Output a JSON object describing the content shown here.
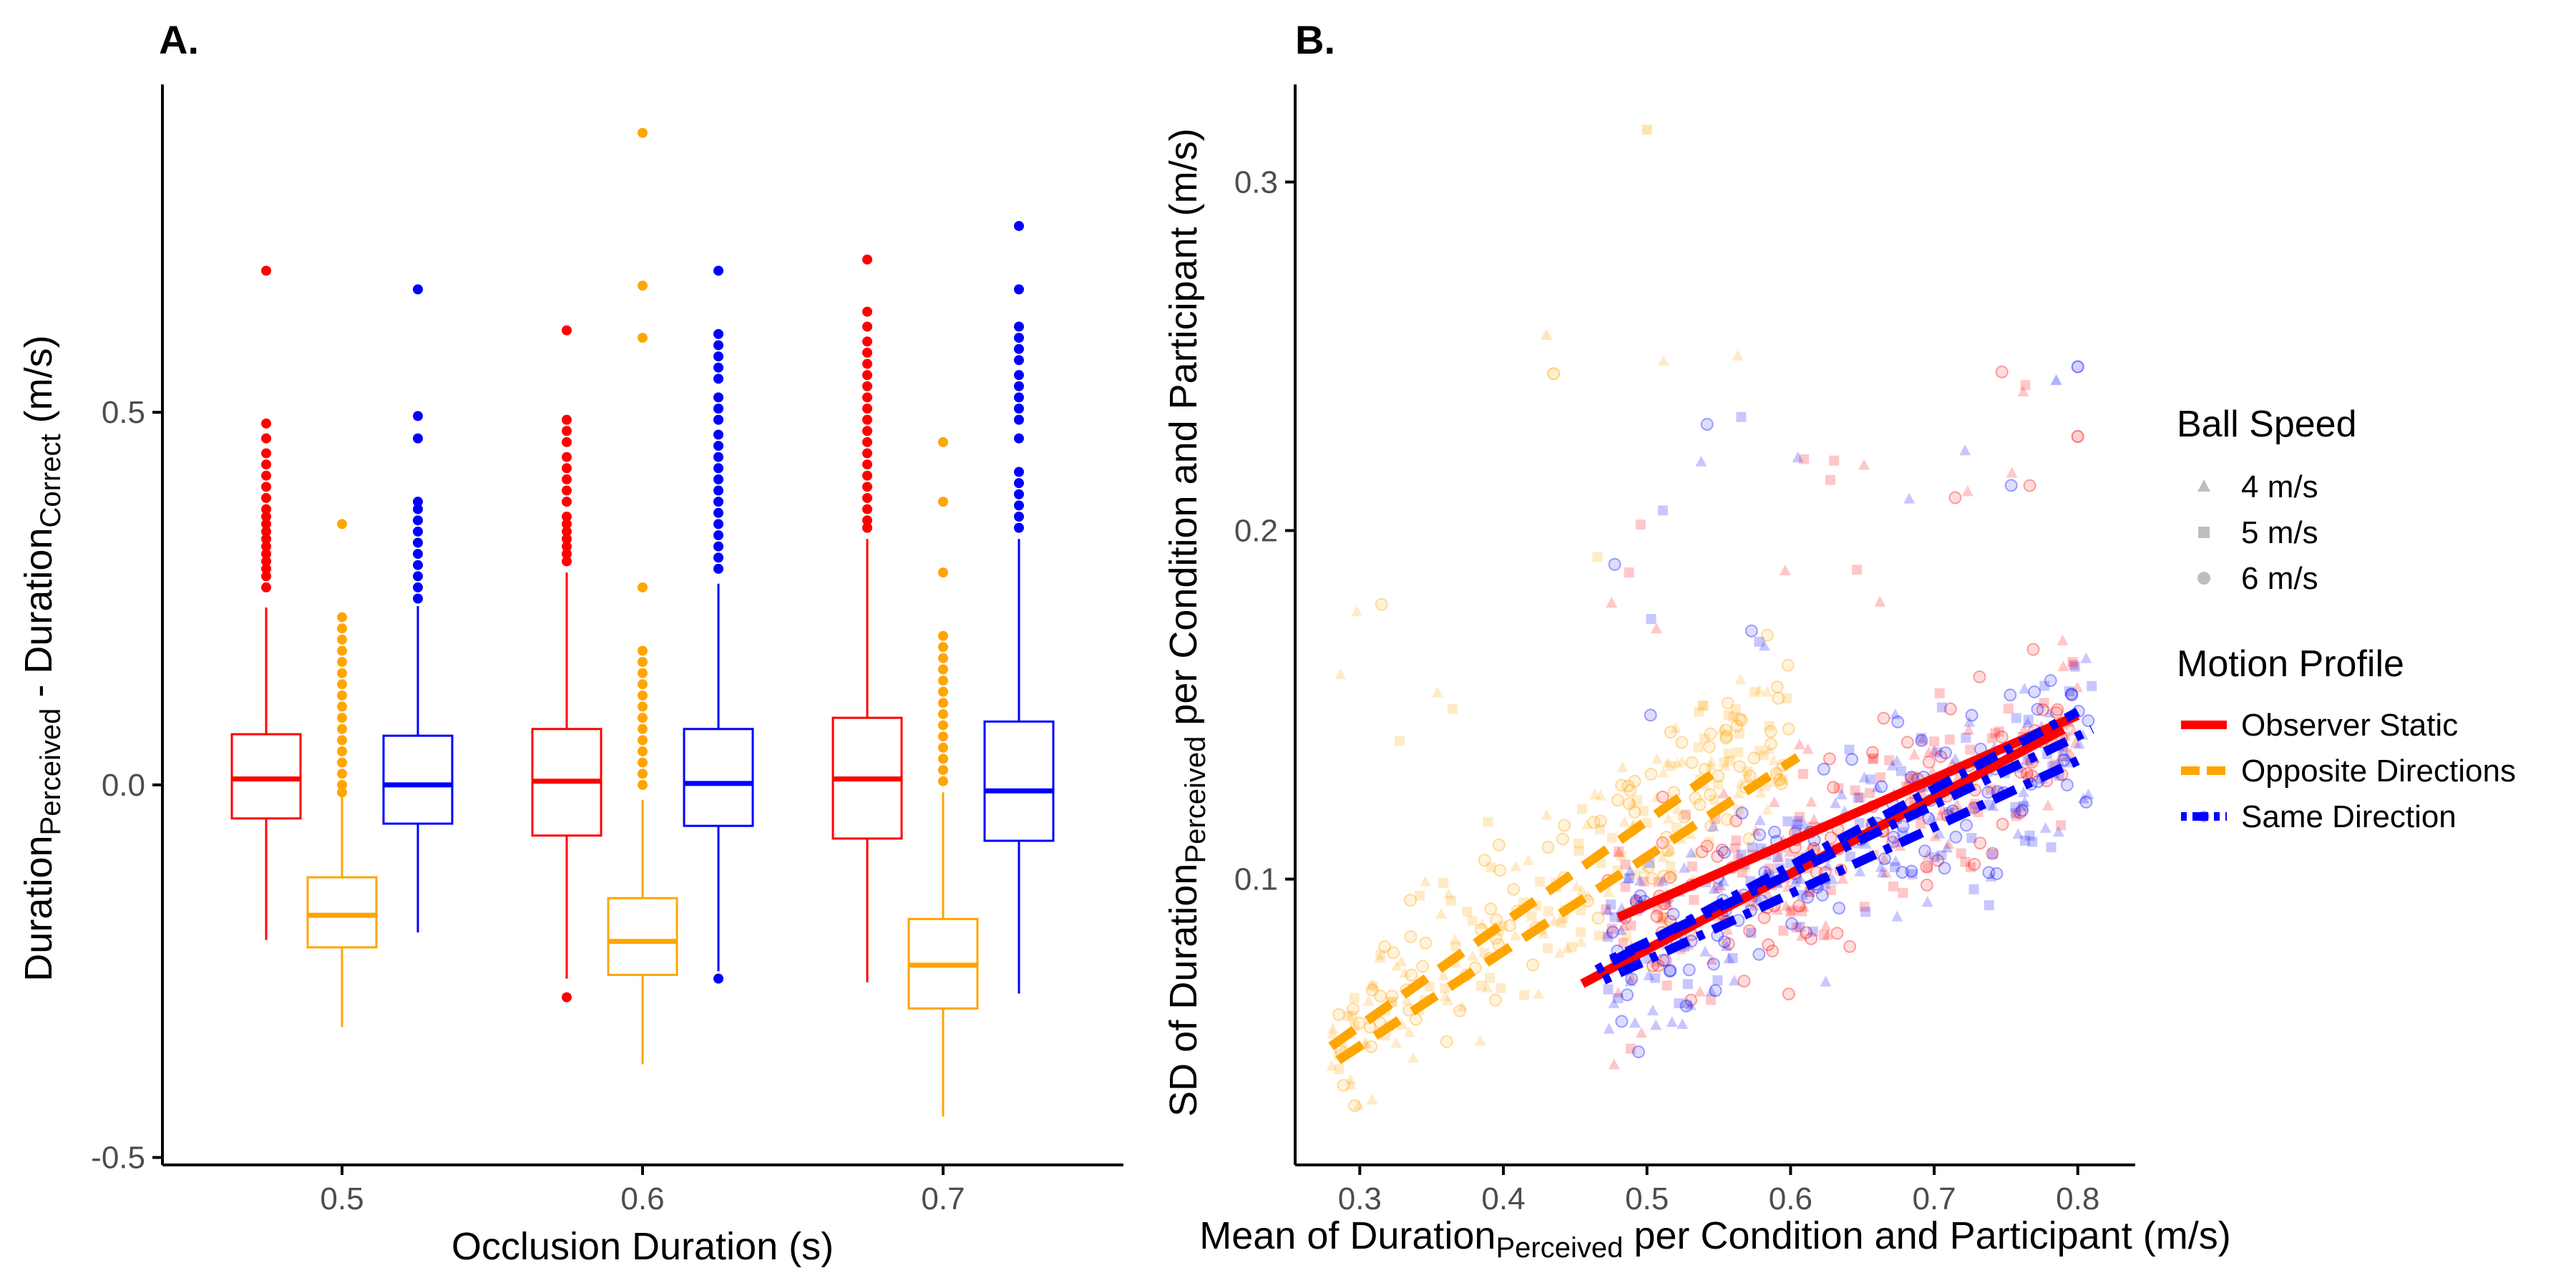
{
  "colors": {
    "observer_static": "#ff0000",
    "opposite_directions": "#ffa500",
    "same_direction": "#0000ff",
    "legend_shapes": "#bebebe",
    "axis": "#000000"
  },
  "panel_a": {
    "label": "A.",
    "ylabel_main1": "Duration",
    "ylabel_sub1": "Perceived",
    "ylabel_main2": " - Duration",
    "ylabel_sub2": "Correct",
    "ylabel_main3": " (m/s)",
    "xlabel": "Occlusion Duration (s)"
  },
  "panel_b": {
    "label": "B.",
    "ylabel_main1": "SD of Duration",
    "ylabel_sub1": "Perceived",
    "ylabel_main2": " per Condition and Participant (m/s)",
    "xlabel_main1": "Mean of Duration",
    "xlabel_sub1": "Perceived",
    "xlabel_main2": " per Condition and Participant (m/s)"
  },
  "legend": {
    "speed_title": "Ball Speed",
    "speed_items": [
      {
        "label": "4 m/s",
        "shape": "triangle"
      },
      {
        "label": "5 m/s",
        "shape": "square"
      },
      {
        "label": "6 m/s",
        "shape": "circle"
      }
    ],
    "motion_title": "Motion Profile",
    "motion_items": [
      {
        "label": "Observer Static",
        "color": "#ff0000",
        "dash": "solid"
      },
      {
        "label": "Opposite Directions",
        "color": "#ffa500",
        "dash": "dashed"
      },
      {
        "label": "Same Direction",
        "color": "#0000ff",
        "dash": "dotdash"
      }
    ]
  },
  "chart_data": [
    {
      "type": "box",
      "xlabel": "Occlusion Duration (s)",
      "ylabel": "DurationPerceived - DurationCorrect (m/s)",
      "categories": [
        "0.5",
        "0.6",
        "0.7"
      ],
      "ylim": [
        -0.51,
        0.94
      ],
      "yticks": [
        -0.5,
        0.0,
        0.5
      ],
      "ytick_labels": [
        "-0.5",
        "0.0",
        "0.5"
      ],
      "series": [
        {
          "name": "Observer Static",
          "color": "#ff0000",
          "boxes": [
            {
              "q1": -0.045,
              "median": 0.008,
              "q3": 0.068,
              "whisker_low": -0.208,
              "whisker_high": 0.238,
              "outliers": [
                0.69,
                0.485,
                0.465,
                0.445,
                0.43,
                0.415,
                0.4,
                0.385,
                0.37,
                0.36,
                0.35,
                0.34,
                0.33,
                0.32,
                0.31,
                0.3,
                0.29,
                0.28,
                0.265
              ]
            },
            {
              "q1": -0.068,
              "median": 0.005,
              "q3": 0.075,
              "whisker_low": -0.26,
              "whisker_high": 0.285,
              "outliers": [
                0.61,
                0.49,
                0.475,
                0.46,
                0.44,
                0.425,
                0.41,
                0.395,
                0.38,
                0.36,
                0.35,
                0.34,
                0.33,
                0.32,
                0.31,
                0.3,
                -0.285
              ]
            },
            {
              "q1": -0.072,
              "median": 0.008,
              "q3": 0.09,
              "whisker_low": -0.265,
              "whisker_high": 0.33,
              "outliers": [
                0.705,
                0.635,
                0.615,
                0.595,
                0.58,
                0.565,
                0.55,
                0.535,
                0.52,
                0.505,
                0.49,
                0.475,
                0.46,
                0.445,
                0.43,
                0.415,
                0.4,
                0.385,
                0.37,
                0.355,
                0.345
              ]
            }
          ]
        },
        {
          "name": "Opposite Directions",
          "color": "#ffa500",
          "boxes": [
            {
              "q1": -0.218,
              "median": -0.175,
              "q3": -0.124,
              "whisker_low": -0.325,
              "whisker_high": -0.015,
              "outliers": [
                0.35,
                0.225,
                0.21,
                0.195,
                0.18,
                0.165,
                0.15,
                0.135,
                0.12,
                0.105,
                0.09,
                0.075,
                0.06,
                0.045,
                0.03,
                0.015,
                0.0,
                -0.01
              ]
            },
            {
              "q1": -0.255,
              "median": -0.21,
              "q3": -0.152,
              "whisker_low": -0.375,
              "whisker_high": -0.02,
              "outliers": [
                0.875,
                0.67,
                0.6,
                0.265,
                0.18,
                0.165,
                0.15,
                0.135,
                0.12,
                0.105,
                0.09,
                0.075,
                0.06,
                0.045,
                0.03,
                0.015,
                0.0
              ]
            },
            {
              "q1": -0.3,
              "median": -0.242,
              "q3": -0.18,
              "whisker_low": -0.445,
              "whisker_high": -0.01,
              "outliers": [
                0.46,
                0.38,
                0.285,
                0.2,
                0.185,
                0.17,
                0.155,
                0.14,
                0.125,
                0.11,
                0.095,
                0.08,
                0.065,
                0.05,
                0.035,
                0.02,
                0.005
              ]
            }
          ]
        },
        {
          "name": "Same Direction",
          "color": "#0000ff",
          "boxes": [
            {
              "q1": -0.052,
              "median": 0.0,
              "q3": 0.066,
              "whisker_low": -0.198,
              "whisker_high": 0.24,
              "outliers": [
                0.665,
                0.495,
                0.465,
                0.38,
                0.37,
                0.355,
                0.34,
                0.325,
                0.31,
                0.295,
                0.28,
                0.265,
                0.25
              ]
            },
            {
              "q1": -0.055,
              "median": 0.002,
              "q3": 0.075,
              "whisker_low": -0.25,
              "whisker_high": 0.27,
              "outliers": [
                0.69,
                0.605,
                0.59,
                0.575,
                0.56,
                0.545,
                0.52,
                0.505,
                0.49,
                0.47,
                0.455,
                0.44,
                0.425,
                0.41,
                0.395,
                0.38,
                0.365,
                0.35,
                0.335,
                0.32,
                0.305,
                0.29,
                -0.26
              ]
            },
            {
              "q1": -0.075,
              "median": -0.008,
              "q3": 0.085,
              "whisker_low": -0.28,
              "whisker_high": 0.33,
              "outliers": [
                0.75,
                0.665,
                0.615,
                0.6,
                0.585,
                0.57,
                0.55,
                0.535,
                0.52,
                0.505,
                0.49,
                0.465,
                0.42,
                0.405,
                0.39,
                0.375,
                0.36,
                0.345
              ]
            }
          ]
        }
      ]
    },
    {
      "type": "scatter",
      "xlabel": "Mean of DurationPerceived per Condition and Participant (m/s)",
      "ylabel": "SD of DurationPerceived per Condition and Participant (m/s)",
      "xlim": [
        0.255,
        0.84
      ],
      "ylim": [
        0.018,
        0.328
      ],
      "xticks": [
        0.3,
        0.4,
        0.5,
        0.6,
        0.7,
        0.8
      ],
      "xtick_labels": [
        "0.3",
        "0.4",
        "0.5",
        "0.6",
        "0.7",
        "0.8"
      ],
      "yticks": [
        0.1,
        0.2,
        0.3
      ],
      "ytick_labels": [
        "0.1",
        "0.2",
        "0.3"
      ],
      "clouds": [
        {
          "name": "Observer Static",
          "color": "#ff0000",
          "x_range": [
            0.47,
            0.8
          ],
          "center": [
            0.63,
            0.11
          ]
        },
        {
          "name": "Opposite Directions",
          "color": "#ffa500",
          "x_range": [
            0.28,
            0.6
          ],
          "center": [
            0.4,
            0.085
          ]
        },
        {
          "name": "Same Direction",
          "color": "#0000ff",
          "x_range": [
            0.47,
            0.81
          ],
          "center": [
            0.62,
            0.105
          ]
        }
      ],
      "fit_lines": [
        {
          "name": "Observer Static",
          "color": "#ff0000",
          "dash": "solid",
          "points": [
            [
              0.48,
              0.089
            ],
            [
              0.8,
              0.147
            ]
          ]
        },
        {
          "name": "Observer Static",
          "color": "#ff0000",
          "dash": "solid",
          "points": [
            [
              0.455,
              0.07
            ],
            [
              0.79,
              0.143
            ]
          ]
        },
        {
          "name": "Opposite Directions",
          "color": "#ffa500",
          "dash": "dashed",
          "points": [
            [
              0.28,
              0.052
            ],
            [
              0.545,
              0.13
            ]
          ]
        },
        {
          "name": "Opposite Directions",
          "color": "#ffa500",
          "dash": "dashed",
          "points": [
            [
              0.285,
              0.048
            ],
            [
              0.605,
              0.135
            ]
          ]
        },
        {
          "name": "Same Direction",
          "color": "#0000ff",
          "dash": "dotdash",
          "points": [
            [
              0.465,
              0.074
            ],
            [
              0.8,
              0.148
            ]
          ]
        },
        {
          "name": "Same Direction",
          "color": "#0000ff",
          "dash": "dotdash",
          "points": [
            [
              0.475,
              0.077
            ],
            [
              0.81,
              0.143
            ]
          ]
        },
        {
          "name": "Same Direction",
          "color": "#0000ff",
          "dash": "dotdash",
          "points": [
            [
              0.47,
              0.071
            ],
            [
              0.8,
              0.134
            ]
          ]
        }
      ]
    }
  ]
}
